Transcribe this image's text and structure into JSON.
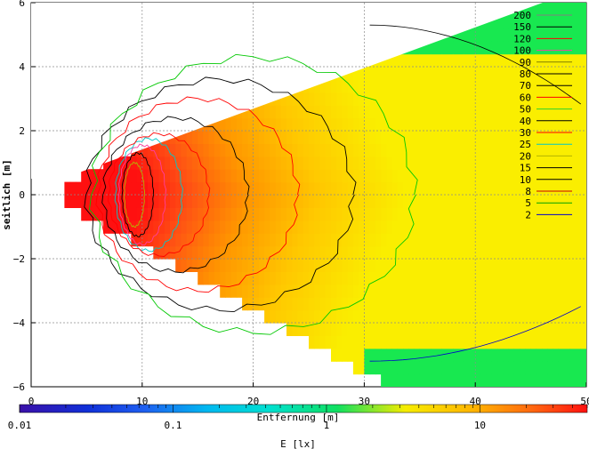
{
  "chart_data": {
    "type": "heatmap",
    "xlabel": "Entfernung [m]",
    "ylabel": "seitlich [m]",
    "colorbar_label": "E [lx]",
    "xlim": [
      0,
      50
    ],
    "ylim": [
      -6,
      6
    ],
    "x_ticks": [
      0,
      10,
      20,
      30,
      40,
      50
    ],
    "y_ticks": [
      -6,
      -4,
      -2,
      0,
      2,
      4,
      6
    ],
    "x_tick_labels": [
      "0",
      "10",
      "20",
      "30",
      "40",
      "50"
    ],
    "y_tick_labels": [
      "−6",
      "−4",
      "−2",
      "0",
      "2",
      "4",
      "6"
    ],
    "colorbar_ticks": [
      0.01,
      0.1,
      1,
      10
    ],
    "colorbar_tick_labels": [
      "0.01",
      "0.1",
      "1",
      "10"
    ],
    "colorbar_range": [
      0.01,
      50
    ],
    "colorbar_scale": "log",
    "grid": true,
    "legend_position": "top-right",
    "beam_apex": [
      2.9,
      0
    ],
    "beam_half_width_at_x30": 5.3,
    "contour_levels": [
      {
        "label": "200",
        "color": "#808080"
      },
      {
        "label": "150",
        "color": "#000000"
      },
      {
        "label": "120",
        "color": "#ff0000"
      },
      {
        "label": "100",
        "color": "#ff3d9e"
      },
      {
        "label": "90",
        "color": "#7f7f00"
      },
      {
        "label": "80",
        "color": "#000000"
      },
      {
        "label": "70",
        "color": "#000000"
      },
      {
        "label": "60",
        "color": "#ff0000"
      },
      {
        "label": "50",
        "color": "#2bd42b"
      },
      {
        "label": "40",
        "color": "#000000"
      },
      {
        "label": "30",
        "color": "#ff0000"
      },
      {
        "label": "25",
        "color": "#00c8c8"
      },
      {
        "label": "20",
        "color": "#b4b400"
      },
      {
        "label": "15",
        "color": "#000000"
      },
      {
        "label": "10",
        "color": "#000000"
      },
      {
        "label": "8",
        "color": "#cc0000"
      },
      {
        "label": "5",
        "color": "#00a000"
      },
      {
        "label": "2",
        "color": "#0000cc"
      }
    ]
  }
}
